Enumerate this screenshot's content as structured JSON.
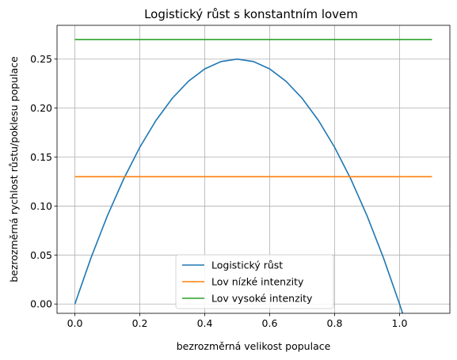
{
  "chart_data": {
    "type": "line",
    "title": "Logistický růst s konstantním lovem",
    "xlabel": "bezrozměrná velikost populace",
    "ylabel": "bezrozměrná rychlost růstu/poklesu populace",
    "xlim": [
      -0.055,
      1.155
    ],
    "ylim": [
      -0.0095,
      0.2845
    ],
    "xticks": [
      0.0,
      0.2,
      0.4,
      0.6,
      0.8,
      1.0
    ],
    "xtick_labels": [
      "0.0",
      "0.2",
      "0.4",
      "0.6",
      "0.8",
      "1.0"
    ],
    "yticks": [
      0.0,
      0.05,
      0.1,
      0.15,
      0.2,
      0.25
    ],
    "ytick_labels": [
      "0.00",
      "0.05",
      "0.10",
      "0.15",
      "0.20",
      "0.25"
    ],
    "grid": true,
    "legend_position": "lower-center",
    "series": [
      {
        "name": "Logistický růst",
        "color": "#1f77b4",
        "x": [
          0.0,
          0.05,
          0.1,
          0.15,
          0.2,
          0.25,
          0.3,
          0.35,
          0.4,
          0.45,
          0.5,
          0.55,
          0.6,
          0.65,
          0.7,
          0.75,
          0.8,
          0.85,
          0.9,
          0.95,
          1.0,
          1.01
        ],
        "y": [
          0.0,
          0.0475,
          0.09,
          0.1275,
          0.16,
          0.1875,
          0.21,
          0.2275,
          0.24,
          0.2475,
          0.25,
          0.2475,
          0.24,
          0.2275,
          0.21,
          0.1875,
          0.16,
          0.1275,
          0.09,
          0.0475,
          0.0,
          -0.0101
        ]
      },
      {
        "name": "Lov nízké intenzity",
        "color": "#ff7f0e",
        "x": [
          0.0,
          1.1
        ],
        "y": [
          0.13,
          0.13
        ]
      },
      {
        "name": "Lov vysoké intenzity",
        "color": "#2ca02c",
        "x": [
          0.0,
          1.1
        ],
        "y": [
          0.27,
          0.27
        ]
      }
    ]
  }
}
